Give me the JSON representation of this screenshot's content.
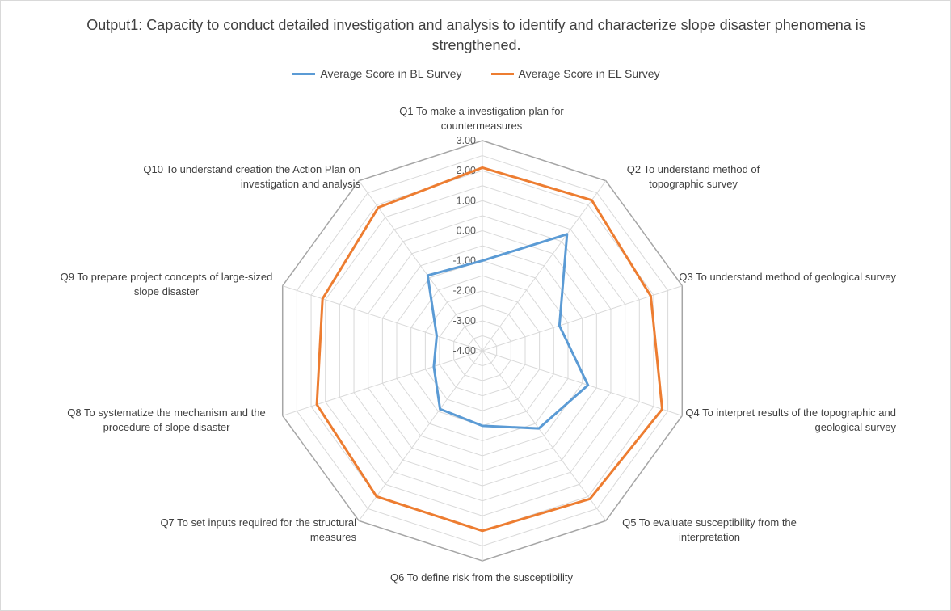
{
  "chart_data": {
    "type": "radar",
    "title": "Output1: Capacity to conduct detailed investigation and analysis to identify and characterize slope disaster phenomena is strengthened.",
    "categories": [
      "Q1 To make a investigation plan for countermeasures",
      "Q2 To understand method of topographic survey",
      "Q3 To understand method of geological survey",
      "Q4 To interpret results of the topographic and geological survey",
      "Q5 To evaluate susceptibility from the interpretation",
      "Q6 To define risk from the susceptibility",
      "Q7 To set inputs required for the structural measures",
      "Q8 To systematize the mechanism and the procedure of slope disaster",
      "Q9 To prepare project concepts of large-sized slope disaster",
      "Q10 To understand creation the Action Plan on investigation and analysis"
    ],
    "series": [
      {
        "name": "Average Score in BL Survey",
        "color": "#5b9bd5",
        "values": [
          -1.0,
          0.8,
          -1.3,
          -0.3,
          -0.8,
          -1.5,
          -1.6,
          -2.3,
          -2.4,
          -0.9
        ]
      },
      {
        "name": "Average Score in EL Survey",
        "color": "#ed7d31",
        "values": [
          2.1,
          2.2,
          1.9,
          2.3,
          2.1,
          2.0,
          2.0,
          1.8,
          1.6,
          1.9
        ]
      }
    ],
    "rlim": [
      -4.0,
      3.0
    ],
    "ticks": [
      "-4.00",
      "-3.00",
      "-2.00",
      "-1.00",
      "0.00",
      "1.00",
      "2.00",
      "3.00"
    ],
    "grid": true,
    "legend_position": "top"
  }
}
